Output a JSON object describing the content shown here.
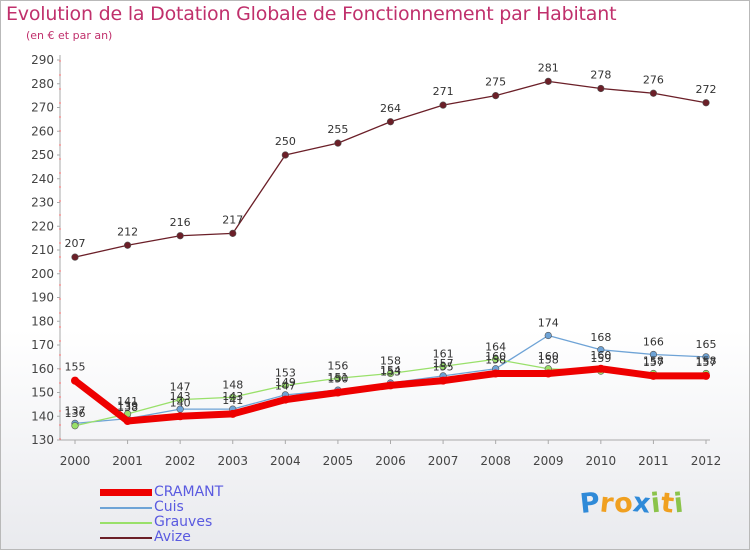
{
  "title": "Evolution de la Dotation Globale de Fonctionnement par Habitant",
  "subtitle": "(en € et par an)",
  "brand": {
    "letters": [
      "P",
      "r",
      "o",
      "x",
      "i",
      "t",
      "i"
    ],
    "colors": [
      "#2f8ad8",
      "#f0a020",
      "#f0a020",
      "#2f8ad8",
      "#8bc34a",
      "#f0a020",
      "#8bc34a"
    ]
  },
  "chart_data": {
    "type": "line",
    "title": "Evolution de la Dotation Globale de Fonctionnement par Habitant",
    "subtitle": "(en € et par an)",
    "xlabel": "",
    "ylabel": "",
    "ylim": [
      130,
      290
    ],
    "yticks": [
      "130",
      "140",
      "150",
      "160",
      "170",
      "180",
      "190",
      "200",
      "210",
      "220",
      "230",
      "240",
      "250",
      "260",
      "270",
      "280",
      "290"
    ],
    "categories": [
      "2000",
      "2001",
      "2002",
      "2003",
      "2004",
      "2005",
      "2006",
      "2007",
      "2008",
      "2009",
      "2010",
      "2011",
      "2012"
    ],
    "grid": false,
    "legend_position": "bottom-left",
    "series": [
      {
        "name": "CRAMANT",
        "color": "#ee0000",
        "values": [
          155,
          138,
          140,
          141,
          147,
          150,
          153,
          155,
          158,
          158,
          160,
          157,
          157
        ]
      },
      {
        "name": "Cuis",
        "color": "#6ea3d6",
        "values": [
          137,
          139,
          143,
          143,
          149,
          151,
          154,
          157,
          160,
          174,
          168,
          166,
          165
        ]
      },
      {
        "name": "Grauves",
        "color": "#99e06a",
        "values": [
          136,
          141,
          147,
          148,
          153,
          156,
          158,
          161,
          164,
          160,
          159,
          158,
          158
        ]
      },
      {
        "name": "Avize",
        "color": "#6b1f28",
        "values": [
          207,
          212,
          216,
          217,
          250,
          255,
          264,
          271,
          275,
          281,
          278,
          276,
          272
        ]
      }
    ]
  }
}
